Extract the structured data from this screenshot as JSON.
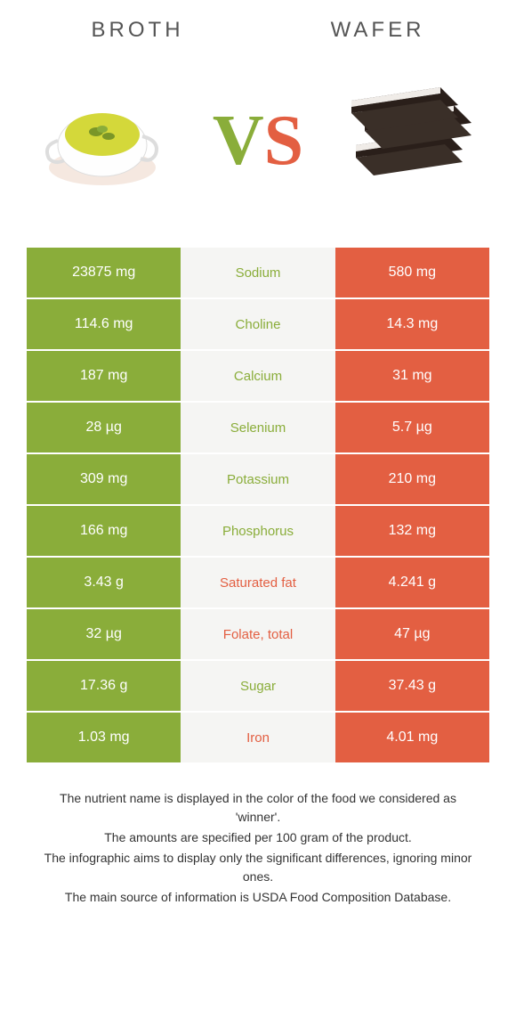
{
  "titles": {
    "left": "Broth",
    "right": "Wafer"
  },
  "vs": {
    "v": "V",
    "s": "S"
  },
  "colors": {
    "left": "#8aad3a",
    "right": "#e35f42",
    "mid_bg": "#f5f5f3"
  },
  "rows": [
    {
      "left": "23875 mg",
      "label": "Sodium",
      "right": "580 mg",
      "winner": "left"
    },
    {
      "left": "114.6 mg",
      "label": "Choline",
      "right": "14.3 mg",
      "winner": "left"
    },
    {
      "left": "187 mg",
      "label": "Calcium",
      "right": "31 mg",
      "winner": "left"
    },
    {
      "left": "28 µg",
      "label": "Selenium",
      "right": "5.7 µg",
      "winner": "left"
    },
    {
      "left": "309 mg",
      "label": "Potassium",
      "right": "210 mg",
      "winner": "left"
    },
    {
      "left": "166 mg",
      "label": "Phosphorus",
      "right": "132 mg",
      "winner": "left"
    },
    {
      "left": "3.43 g",
      "label": "Saturated fat",
      "right": "4.241 g",
      "winner": "right"
    },
    {
      "left": "32 µg",
      "label": "Folate, total",
      "right": "47 µg",
      "winner": "right"
    },
    {
      "left": "17.36 g",
      "label": "Sugar",
      "right": "37.43 g",
      "winner": "left"
    },
    {
      "left": "1.03 mg",
      "label": "Iron",
      "right": "4.01 mg",
      "winner": "right"
    }
  ],
  "footer": {
    "line1": "The nutrient name is displayed in the color of the food we considered as 'winner'.",
    "line2": "The amounts are specified per 100 gram of the product.",
    "line3": "The infographic aims to display only the significant differences, ignoring minor ones.",
    "line4": "The main source of information is USDA Food Composition Database."
  }
}
